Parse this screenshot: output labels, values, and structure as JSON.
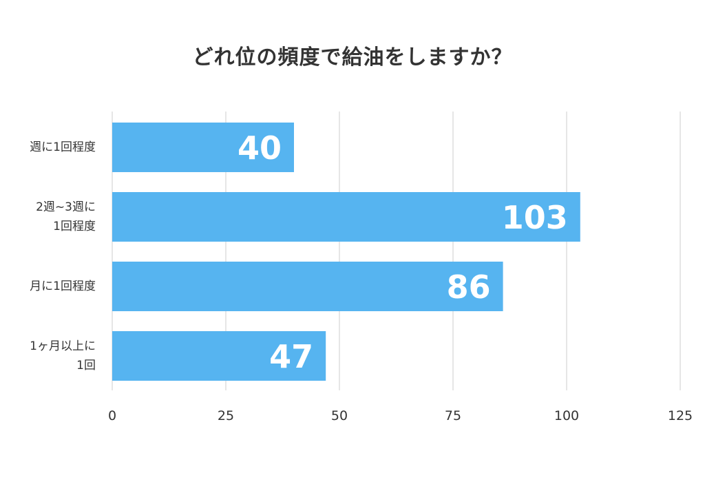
{
  "chart_data": {
    "type": "bar",
    "orientation": "horizontal",
    "title": "どれ位の頻度で給油をしますか？",
    "categories": [
      "週に1回程度",
      "2週~3週に\n1回程度",
      "月に1回程度",
      "1ヶ月以上に\n1回"
    ],
    "values": [
      40,
      103,
      86,
      47
    ],
    "xlim": [
      0,
      125
    ],
    "xticks": [
      "0",
      "25",
      "50",
      "75",
      "100",
      "125"
    ],
    "grid": true,
    "bar_color": "#56b4f0",
    "grid_color": "#dddddd",
    "value_label_color": "#ffffff"
  }
}
